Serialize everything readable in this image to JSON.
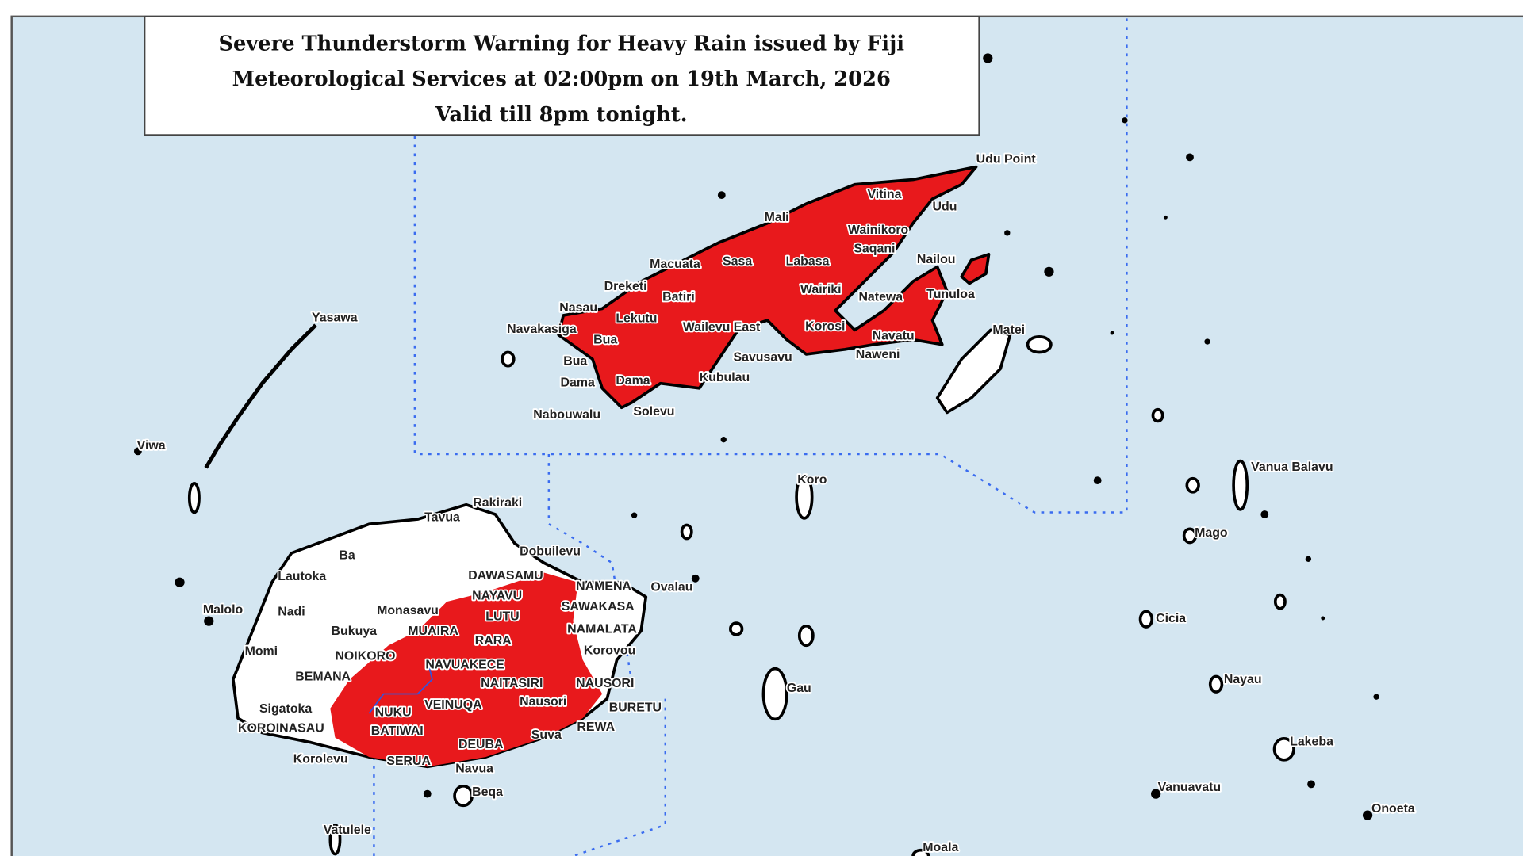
{
  "title": {
    "line1": "Severe Thunderstorm Warning for Heavy Rain issued by Fiji",
    "line2": "Meteorological Services at 02:00pm on 19th March, 2026",
    "line3": "Valid till 8pm tonight."
  },
  "colors": {
    "sea": "#d4e6f1",
    "warning_area": "#e8191c",
    "land": "#ffffff",
    "boundary": "#3a6cf0"
  },
  "labels": [
    "Udu Point",
    "Vitina",
    "Udu",
    "Mali",
    "Wainikoro",
    "Saqani",
    "Nailou",
    "Macuata",
    "Sasa",
    "Labasa",
    "Dreketi",
    "Wairiki",
    "Natewa",
    "Tunuloa",
    "Batiri",
    "Nasau",
    "Lekutu",
    "Navakasiga",
    "Wailevu East",
    "Korosi",
    "Matei",
    "Bua",
    "Navatu",
    "Naweni",
    "Savusavu",
    "Bua",
    "Kubulau",
    "Dama",
    "Dama",
    "Nabouwalu",
    "Solevu",
    "Yasawa",
    "Viwa",
    "Koro",
    "Vanua Balavu",
    "Rakiraki",
    "Tavua",
    "Mago",
    "Dobuilevu",
    "Ba",
    "Lautoka",
    "DAWASAMU",
    "NAMENA",
    "Ovalau",
    "NAYAVU",
    "Malolo",
    "Nadi",
    "Monasavu",
    "LUTU",
    "SAWAKASA",
    "Cicia",
    "Bukuya",
    "MUAIRA",
    "NAMALATA",
    "RARA",
    "Korovou",
    "Momi",
    "NOIKORO",
    "NAVUAKECE",
    "BEMANA",
    "NAITASIRI",
    "NAUSORI",
    "Nayau",
    "Gau",
    "Sigatoka",
    "NUKU",
    "VEINUQA",
    "Nausori",
    "BURETU",
    "KOROINASAU",
    "BATIWAI",
    "REWA",
    "Suva",
    "DEUBA",
    "Lakeba",
    "Korolevu",
    "SERUA",
    "Navua",
    "Vanuavatu",
    "Beqa",
    "Onoeta",
    "Vatulele",
    "Moala"
  ]
}
